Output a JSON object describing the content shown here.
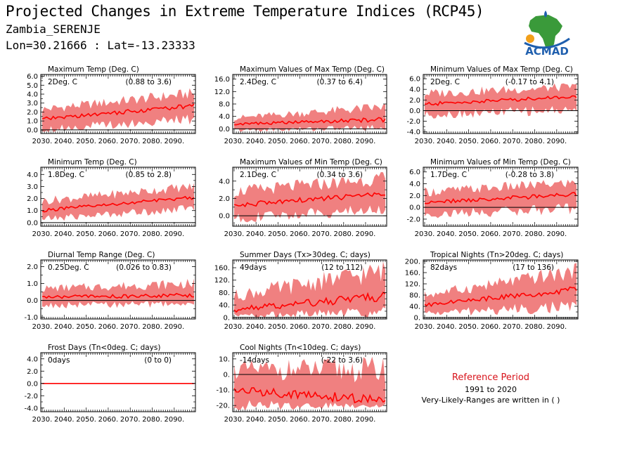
{
  "header": {
    "title": "Projected Changes in Extreme Temperature Indices (RCP45)",
    "station": "Zambia_SERENJE",
    "coords": "Lon=30.21666 : Lat=-13.23333"
  },
  "logo": {
    "text": "ACMAD"
  },
  "reference": {
    "title": "Reference Period",
    "years": "1991 to 2020",
    "note": "Very-Likely-Ranges are written in ( )"
  },
  "colors": {
    "band": "#f08080",
    "line": "#ff0000",
    "zero": "#000000",
    "logo_blue": "#1f5fae",
    "logo_green": "#3a9a3a",
    "logo_orange": "#f2a01a"
  },
  "chart_data": [
    {
      "type": "area",
      "title": "Maximum Temp (Deg. C)",
      "value_label": "2Deg. C",
      "range_label": "(0.88 to 3.6)",
      "yticks": [
        "6.0",
        "5.0",
        "4.0",
        "3.0",
        "2.0",
        "1.0",
        "0.0"
      ],
      "ylim": [
        -0.4,
        6.2
      ],
      "x_start": 2030,
      "x_end": 2099,
      "line_start": 1.2,
      "line_end": 2.7,
      "lower_start": 0.1,
      "lower_end": 1.2,
      "upper_start": 2.3,
      "upper_end": 4.1,
      "xticks": [
        "2030.",
        "2040.",
        "2050.",
        "2060.",
        "2070.",
        "2080.",
        "2090."
      ]
    },
    {
      "type": "area",
      "title": "Maximum Values of Max Temp (Deg. C)",
      "value_label": "2.4Deg. C",
      "range_label": "(0.37 to 6.4)",
      "yticks": [
        "16.0",
        "12.0",
        "8.0",
        "4.0",
        "0.0"
      ],
      "ylim": [
        -1.5,
        17.5
      ],
      "x_start": 2030,
      "x_end": 2099,
      "line_start": 1.5,
      "line_end": 3.0,
      "lower_start": -0.5,
      "lower_end": 0.5,
      "upper_start": 3.5,
      "upper_end": 7.0,
      "xticks": [
        "2030.",
        "2040.",
        "2050.",
        "2060.",
        "2070.",
        "2080.",
        "2090."
      ]
    },
    {
      "type": "area",
      "title": "Minimum Values of Max Temp (Deg. C)",
      "value_label": "2Deg. C",
      "range_label": "(-0.17 to 4.1)",
      "yticks": [
        "6.0",
        "4.0",
        "2.0",
        "0.0",
        "-2.0",
        "-4.0"
      ],
      "ylim": [
        -4.3,
        6.8
      ],
      "x_start": 2030,
      "x_end": 2099,
      "line_start": 1.2,
      "line_end": 2.7,
      "lower_start": -0.8,
      "lower_end": 0.2,
      "upper_start": 3.2,
      "upper_end": 4.5,
      "xticks": [
        "2030.",
        "2040.",
        "2050.",
        "2060.",
        "2070.",
        "2080.",
        "2090."
      ]
    },
    {
      "type": "area",
      "title": "Minimum Temp (Deg. C)",
      "value_label": "1.8Deg. C",
      "range_label": "(0.85 to 2.8)",
      "yticks": [
        "4.0",
        "3.0",
        "2.0",
        "1.0",
        "0.0"
      ],
      "ylim": [
        -0.3,
        4.6
      ],
      "x_start": 2030,
      "x_end": 2099,
      "line_start": 1.0,
      "line_end": 2.1,
      "lower_start": 0.3,
      "lower_end": 1.2,
      "upper_start": 1.8,
      "upper_end": 3.0,
      "xticks": [
        "2030.",
        "2040.",
        "2050.",
        "2060.",
        "2070.",
        "2080.",
        "2090."
      ]
    },
    {
      "type": "area",
      "title": "Maximum Values of Min Temp (Deg. C)",
      "value_label": "2.1Deg. C",
      "range_label": "(0.34 to 3.6)",
      "yticks": [
        "4.0",
        "2.0",
        "0.0"
      ],
      "ylim": [
        -1.2,
        5.6
      ],
      "x_start": 2030,
      "x_end": 2099,
      "line_start": 1.2,
      "line_end": 2.5,
      "lower_start": -0.3,
      "lower_end": 0.8,
      "upper_start": 2.8,
      "upper_end": 4.3,
      "xticks": [
        "2030.",
        "2040.",
        "2050.",
        "2060.",
        "2070.",
        "2080.",
        "2090."
      ]
    },
    {
      "type": "area",
      "title": "Minimum Values of Min Temp (Deg. C)",
      "value_label": "1.7Deg. C",
      "range_label": "(-0.28 to 3.8)",
      "yticks": [
        "6.0",
        "4.0",
        "2.0",
        "0.0",
        "-2.0"
      ],
      "ylim": [
        -3.2,
        6.8
      ],
      "x_start": 2030,
      "x_end": 2099,
      "line_start": 0.8,
      "line_end": 2.2,
      "lower_start": -1.2,
      "lower_end": -0.2,
      "upper_start": 2.6,
      "upper_end": 4.2,
      "xticks": [
        "2030.",
        "2040.",
        "2050.",
        "2060.",
        "2070.",
        "2080.",
        "2090."
      ]
    },
    {
      "type": "area",
      "title": "Diurnal Temp Range (Deg. C)",
      "value_label": "0.25Deg. C",
      "range_label": "(0.026 to 0.83)",
      "yticks": [
        "2.0",
        "1.0",
        "0.0",
        "-1.0"
      ],
      "ylim": [
        -1.1,
        2.4
      ],
      "x_start": 2030,
      "x_end": 2099,
      "line_start": 0.2,
      "line_end": 0.3,
      "lower_start": -0.3,
      "lower_end": -0.2,
      "upper_start": 0.7,
      "upper_end": 1.0,
      "xticks": [
        "2030.",
        "2040.",
        "2050.",
        "2060.",
        "2070.",
        "2080.",
        "2090."
      ]
    },
    {
      "type": "area",
      "title": "Summer Days (Tx>30deg. C; days)",
      "value_label": "49days",
      "range_label": "(12 to 112)",
      "yticks": [
        "160.",
        "120.",
        "80.",
        "40.",
        "0."
      ],
      "ylim": [
        -5,
        185
      ],
      "x_start": 2030,
      "x_end": 2099,
      "line_start": 25,
      "line_end": 68,
      "lower_start": 5,
      "lower_end": 18,
      "upper_start": 70,
      "upper_end": 150,
      "xticks": [
        "2030.",
        "2040.",
        "2050.",
        "2060.",
        "2070.",
        "2080.",
        "2090."
      ]
    },
    {
      "type": "area",
      "title": "Tropical Nights (Tn>20deg. C; days)",
      "value_label": "82days",
      "range_label": "(17 to 136)",
      "yticks": [
        "200.",
        "160.",
        "120.",
        "80.",
        "40.",
        "0."
      ],
      "ylim": [
        -5,
        205
      ],
      "x_start": 2030,
      "x_end": 2099,
      "line_start": 45,
      "line_end": 100,
      "lower_start": 15,
      "lower_end": 40,
      "upper_start": 80,
      "upper_end": 165,
      "xticks": [
        "2030.",
        "2040.",
        "2050.",
        "2060.",
        "2070.",
        "2080.",
        "2090."
      ]
    },
    {
      "type": "area",
      "title": "Frost Days (Tn<0deg. C; days)",
      "value_label": "0days",
      "range_label": "(0 to 0)",
      "yticks": [
        "4.0",
        "2.0",
        "0.0",
        "-2.0",
        "-4.0"
      ],
      "ylim": [
        -4.6,
        5.0
      ],
      "x_start": 2030,
      "x_end": 2099,
      "line_start": 0,
      "line_end": 0,
      "lower_start": 0,
      "lower_end": 0,
      "upper_start": 0,
      "upper_end": 0,
      "xticks": [
        "2030.",
        "2040.",
        "2050.",
        "2060.",
        "2070.",
        "2080.",
        "2090."
      ]
    },
    {
      "type": "area",
      "title": "Cool Nights (Tn<10deg. C; days)",
      "value_label": "-14days",
      "range_label": "(-22 to 3.6)",
      "yticks": [
        "10.",
        "0.",
        "-10.",
        "-20."
      ],
      "ylim": [
        -24,
        14
      ],
      "x_start": 2030,
      "x_end": 2099,
      "line_start": -10,
      "line_end": -17,
      "lower_start": -20,
      "lower_end": -20,
      "upper_start": 3,
      "upper_end": 3,
      "xticks": [
        "2030.",
        "2040.",
        "2050.",
        "2060.",
        "2070.",
        "2080.",
        "2090."
      ]
    }
  ]
}
